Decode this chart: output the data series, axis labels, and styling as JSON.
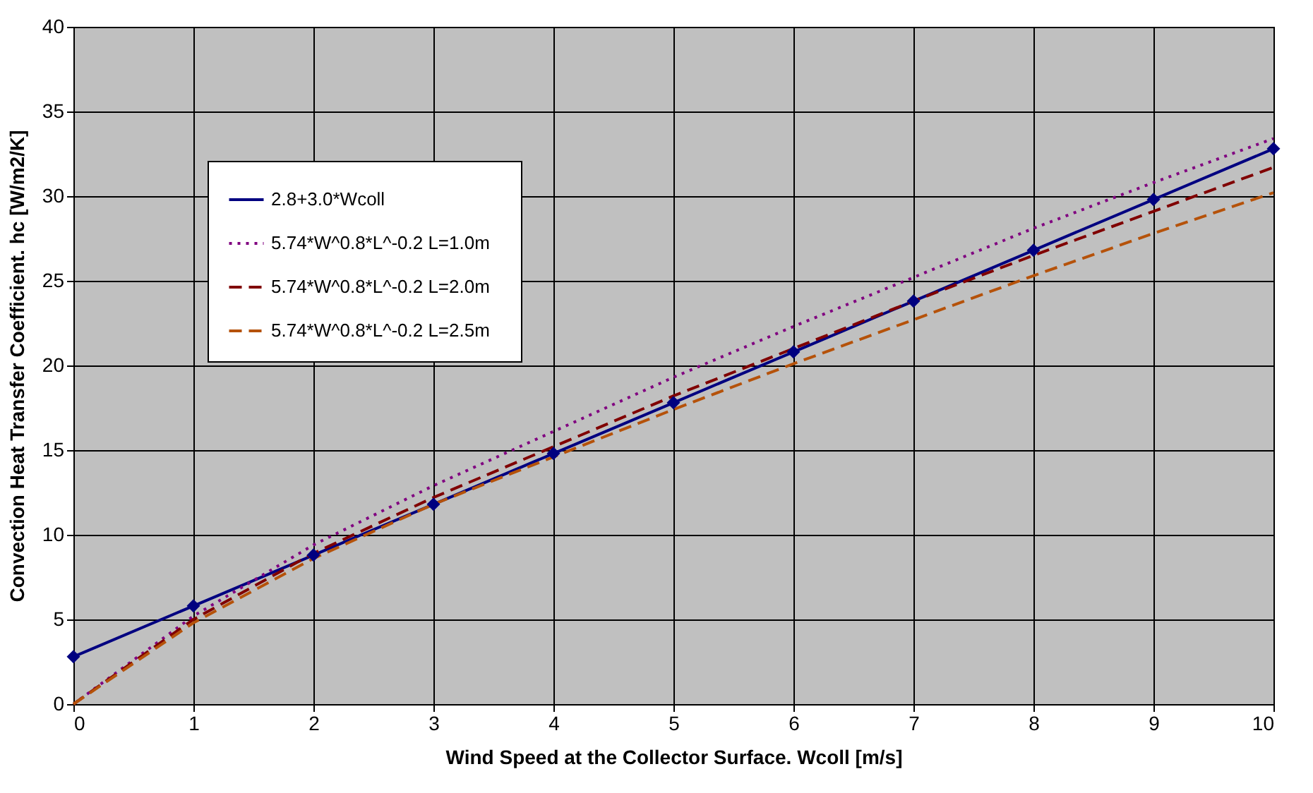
{
  "chart_data": {
    "type": "line",
    "xlabel": "Wind Speed at the Collector Surface. Wcoll [m/s]",
    "ylabel": "Convection Heat Transfer Coefficient. hc  [W/m2/K]",
    "x": [
      0,
      1,
      2,
      3,
      4,
      5,
      6,
      7,
      8,
      9,
      10
    ],
    "series": [
      {
        "name": "2.8+3.0*Wcoll",
        "color": "#000080",
        "marker": "diamond",
        "line_style": "solid",
        "values": [
          2.8,
          5.8,
          8.8,
          11.8,
          14.8,
          17.8,
          20.8,
          23.8,
          26.8,
          29.8,
          32.8
        ]
      },
      {
        "name": "5.74*W^0.8*L^-0.2   L=1.0m",
        "color": "#800080",
        "marker": "none",
        "line_style": "dotted",
        "values": [
          0,
          5.2,
          9.4,
          12.9,
          16.1,
          19.3,
          22.3,
          25.2,
          28.1,
          30.8,
          33.4
        ]
      },
      {
        "name": "5.74*W^0.8*L^-0.2   L=2.0m",
        "color": "#800000",
        "marker": "none",
        "line_style": "dashed",
        "values": [
          0,
          5.0,
          8.9,
          12.2,
          15.2,
          18.2,
          21.0,
          23.8,
          26.5,
          29.1,
          31.7
        ]
      },
      {
        "name": "5.74*W^0.8*L^-0.2   L=2.5m",
        "color": "#b5520a",
        "marker": "none",
        "line_style": "dashed",
        "values": [
          0,
          4.8,
          8.6,
          11.8,
          14.6,
          17.4,
          20.1,
          22.7,
          25.3,
          27.8,
          30.2
        ]
      }
    ],
    "xlim": [
      0,
      10
    ],
    "xticks": [
      0,
      1,
      2,
      3,
      4,
      5,
      6,
      7,
      8,
      9,
      10
    ],
    "ylim": [
      0,
      40
    ],
    "yticks": [
      0,
      5,
      10,
      15,
      20,
      25,
      30,
      35,
      40
    ],
    "grid": true,
    "legend": "top left"
  }
}
